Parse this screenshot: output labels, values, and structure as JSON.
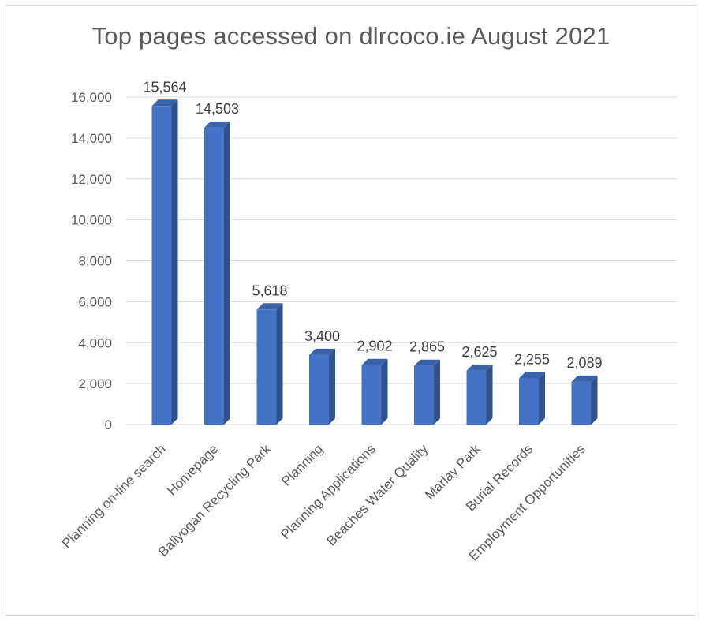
{
  "chart_data": {
    "type": "bar",
    "title": "Top pages accessed on dlrcoco.ie August 2021",
    "categories": [
      "Planning on-line search",
      "Homepage",
      "Ballyogan Recycling Park",
      "Planning",
      "Planning Applications",
      "Beaches Water Quality",
      "Marlay Park",
      "Burial Records",
      "Employment Opportunities"
    ],
    "values": [
      15564,
      14503,
      5618,
      3400,
      2902,
      2865,
      2625,
      2255,
      2089
    ],
    "data_labels": [
      "15,564",
      "14,503",
      "5,618",
      "3,400",
      "2,902",
      "2,865",
      "2,625",
      "2,255",
      "2,089"
    ],
    "ylim": [
      0,
      16000
    ],
    "yticks": [
      "0",
      "2,000",
      "4,000",
      "6,000",
      "8,000",
      "10,000",
      "12,000",
      "14,000",
      "16,000"
    ],
    "xlabel": "",
    "ylabel": "",
    "grid": true,
    "legend": "none",
    "bar_color": "#4472c4",
    "bar_side_color": "#2f528f",
    "bar_top_color": "#3a62a8"
  }
}
